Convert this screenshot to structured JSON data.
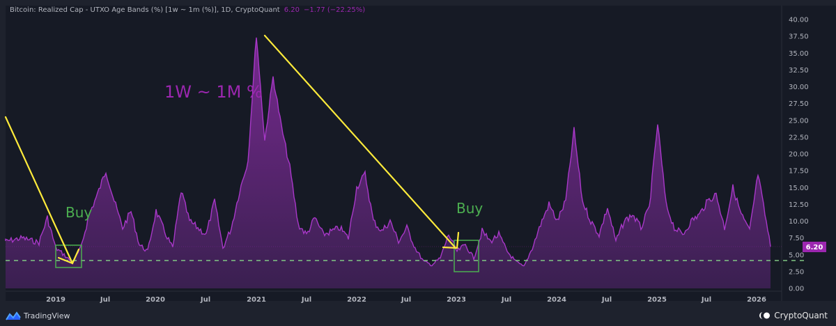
{
  "header": {
    "title": "Bitcoin: Realized Cap - UTXO Age Bands (%) [1w ~ 1m (%)], 1D, CryptoQuant",
    "last_value": "6.20",
    "change": "−1.77 (−22.25%)"
  },
  "price_label": "6.20",
  "annotations": {
    "series_label": "1W ~ 1M %",
    "buy_label_1": "Buy",
    "buy_label_2": "Buy"
  },
  "footer": {
    "left_brand": "TradingView",
    "right_brand": "CryptoQuant"
  },
  "colors": {
    "background": "#161a25",
    "series": "#9c27b0",
    "series_fill_top": "#7b2a94",
    "arrow": "#ffeb3b",
    "buy_box": "#4caf50",
    "support_line": "#81c784"
  },
  "chart_data": {
    "type": "area",
    "title": "Bitcoin: Realized Cap - UTXO Age Bands (%) [1w ~ 1m (%)], 1D, CryptoQuant",
    "xlabel": "",
    "ylabel": "",
    "ylim": [
      0,
      40
    ],
    "y_ticks": [
      "0.00",
      "2.50",
      "5.00",
      "7.50",
      "10.00",
      "12.50",
      "15.00",
      "17.50",
      "20.00",
      "22.50",
      "25.00",
      "27.50",
      "30.00",
      "32.50",
      "35.00",
      "37.50",
      "40.00"
    ],
    "x_ticks": [
      "2019",
      "Jul",
      "2020",
      "Jul",
      "2021",
      "Jul",
      "2022",
      "Jul",
      "2023",
      "Jul",
      "2024",
      "Jul",
      "2025",
      "Jul",
      "2026"
    ],
    "grid": false,
    "legend": "none",
    "series": [
      {
        "name": "1w ~ 1m (%)",
        "x": [
          "2018-05",
          "2018-07",
          "2018-09",
          "2018-11",
          "2018-12",
          "2019-01",
          "2019-02",
          "2019-03",
          "2019-04",
          "2019-05",
          "2019-06",
          "2019-07",
          "2019-08",
          "2019-09",
          "2019-10",
          "2019-11",
          "2019-12",
          "2020-01",
          "2020-02",
          "2020-03",
          "2020-04",
          "2020-05",
          "2020-06",
          "2020-07",
          "2020-08",
          "2020-09",
          "2020-10",
          "2020-11",
          "2020-12",
          "2021-01",
          "2021-02",
          "2021-03",
          "2021-04",
          "2021-05",
          "2021-06",
          "2021-07",
          "2021-08",
          "2021-09",
          "2021-10",
          "2021-11",
          "2021-12",
          "2022-01",
          "2022-02",
          "2022-03",
          "2022-04",
          "2022-05",
          "2022-06",
          "2022-07",
          "2022-08",
          "2022-09",
          "2022-10",
          "2022-11",
          "2022-12",
          "2023-01",
          "2023-02",
          "2023-03",
          "2023-04",
          "2023-05",
          "2023-06",
          "2023-07",
          "2023-08",
          "2023-09",
          "2023-10",
          "2023-11",
          "2023-12",
          "2024-01",
          "2024-02",
          "2024-03",
          "2024-04",
          "2024-05",
          "2024-06",
          "2024-07",
          "2024-08",
          "2024-09",
          "2024-10",
          "2024-11",
          "2024-12",
          "2025-01",
          "2025-02",
          "2025-03",
          "2025-04",
          "2025-05",
          "2025-06",
          "2025-07",
          "2025-08",
          "2025-09",
          "2025-10",
          "2025-11",
          "2025-12",
          "2026-01",
          "2026-02"
        ],
        "values": [
          7.2,
          7.0,
          7.5,
          6.8,
          10.5,
          6.0,
          5.0,
          3.8,
          6.0,
          11.0,
          14.0,
          17.5,
          13.0,
          9.0,
          11.5,
          6.5,
          5.5,
          11.5,
          8.5,
          6.0,
          14.5,
          10.0,
          9.0,
          8.0,
          13.0,
          6.0,
          9.0,
          14.5,
          19.0,
          37.8,
          22.0,
          31.5,
          24.0,
          18.0,
          9.5,
          8.0,
          10.5,
          8.0,
          8.5,
          9.0,
          7.5,
          15.0,
          17.0,
          10.0,
          8.5,
          10.0,
          7.0,
          9.0,
          6.0,
          4.0,
          3.5,
          4.5,
          8.0,
          5.5,
          6.5,
          4.5,
          8.5,
          7.0,
          8.0,
          5.5,
          4.0,
          3.2,
          6.0,
          9.5,
          12.5,
          10.0,
          13.0,
          23.5,
          13.0,
          10.0,
          8.0,
          12.0,
          7.0,
          10.0,
          11.0,
          9.0,
          12.0,
          24.5,
          12.5,
          9.0,
          8.0,
          10.0,
          11.0,
          13.0,
          14.0,
          9.0,
          15.0,
          11.0,
          8.5,
          17.0,
          6.2
        ]
      }
    ],
    "horizontal_lines": [
      {
        "name": "support",
        "value": 4.1,
        "style": "dashed",
        "color": "#81c784"
      },
      {
        "name": "last-value",
        "value": 6.2,
        "style": "dotted",
        "color": "#9c27b0"
      }
    ],
    "annotations": [
      {
        "type": "text",
        "text": "1W ~ 1M %",
        "x": "2020-05",
        "y": 29.5
      },
      {
        "type": "text",
        "text": "Buy",
        "x": "2019-02",
        "y": 11.0
      },
      {
        "type": "text",
        "text": "Buy",
        "x": "2023-01",
        "y": 12.0
      },
      {
        "type": "box",
        "label": "buy-zone-2019",
        "x0": "2019-01",
        "x1": "2019-04",
        "y0": 3.2,
        "y1": 6.4
      },
      {
        "type": "box",
        "label": "buy-zone-2023",
        "x0": "2022-12",
        "x1": "2023-04",
        "y0": 2.8,
        "y1": 7.3
      },
      {
        "type": "arrow",
        "from": [
          "2018-01",
          25.5
        ],
        "to": [
          "2019-03",
          3.8
        ]
      },
      {
        "type": "arrow",
        "from": [
          "2021-01",
          37.8
        ],
        "to": [
          "2022-12",
          6.2
        ]
      }
    ]
  }
}
